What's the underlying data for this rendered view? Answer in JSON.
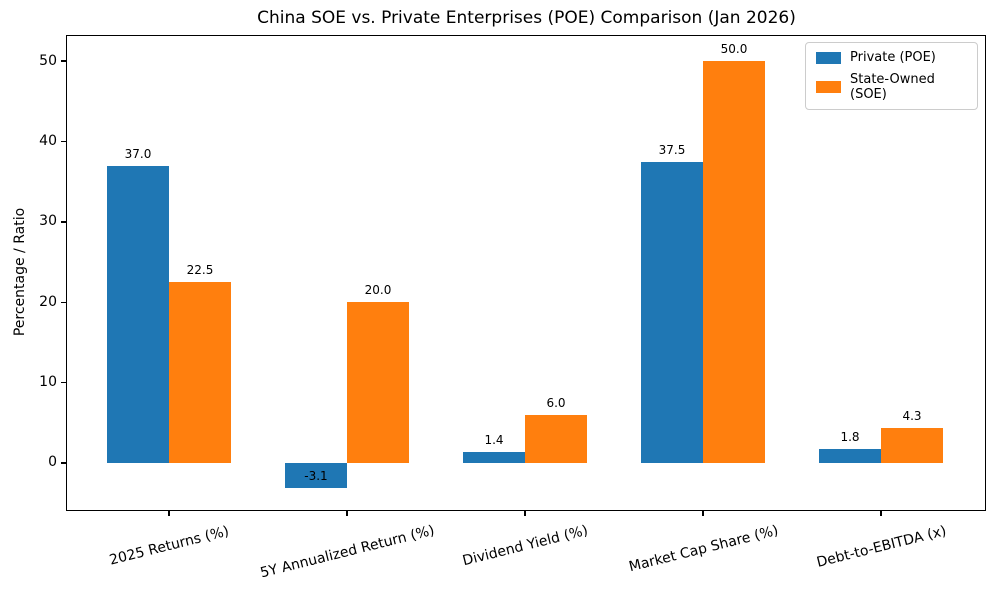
{
  "title": "China SOE vs. Private Enterprises (POE) Comparison (Jan 2026)",
  "legend": {
    "items": [
      {
        "label": "Private (POE)",
        "color": "#1f77b4"
      },
      {
        "label": "State-Owned (SOE)",
        "color": "#ff7f0e"
      }
    ]
  },
  "chart_data": {
    "type": "bar",
    "title": "China SOE vs. Private Enterprises (POE) Comparison (Jan 2026)",
    "xlabel": "",
    "ylabel": "Percentage / Ratio",
    "categories": [
      "2025 Returns (%)",
      "5Y Annualized Return (%)",
      "Dividend Yield (%)",
      "Market Cap Share (%)",
      "Debt-to-EBITDA (x)"
    ],
    "series": [
      {
        "name": "Private (POE)",
        "color": "#1f77b4",
        "values": [
          37.0,
          -3.1,
          1.4,
          37.5,
          1.8
        ]
      },
      {
        "name": "State-Owned (SOE)",
        "color": "#ff7f0e",
        "values": [
          22.5,
          20.0,
          6.0,
          50.0,
          4.3
        ]
      }
    ],
    "bar_label_values": [
      [
        "37.0",
        "-3.1",
        "1.4",
        "37.5",
        "1.8"
      ],
      [
        "22.5",
        "20.0",
        "6.0",
        "50.0",
        "4.3"
      ]
    ],
    "yticks": [
      0,
      10,
      20,
      30,
      40,
      50
    ],
    "ylim": [
      -5.85,
      53.13
    ],
    "grid": false,
    "legend_position": "upper right"
  }
}
